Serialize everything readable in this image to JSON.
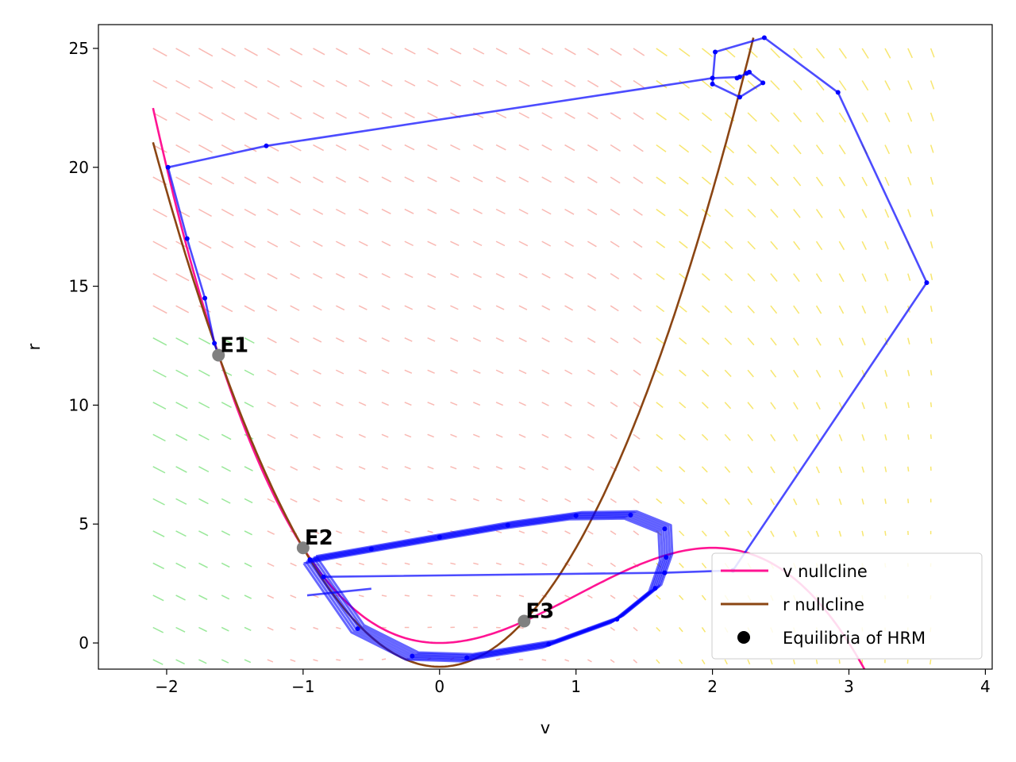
{
  "chart_data": {
    "type": "line",
    "xlabel": "v",
    "ylabel": "r",
    "xlim": [
      -2.5,
      4.05
    ],
    "ylim": [
      -1.1,
      26
    ],
    "xticks": [
      -2,
      -1,
      0,
      1,
      2,
      3,
      4
    ],
    "yticks": [
      0,
      5,
      10,
      15,
      20,
      25
    ],
    "xtick_labels": [
      "−2",
      "−1",
      "0",
      "1",
      "2",
      "3",
      "4"
    ],
    "ytick_labels": [
      "0",
      "5",
      "10",
      "15",
      "20",
      "25"
    ],
    "grid": false,
    "legend": {
      "placement": "lower-right",
      "entries": [
        {
          "label": "v nullcline",
          "color": "#ff1493",
          "kind": "line"
        },
        {
          "label": "r nullcline",
          "color": "#8b4513",
          "kind": "line"
        },
        {
          "label": "Equilibria of HRM",
          "color": "#000000",
          "kind": "marker"
        }
      ]
    },
    "series": [
      {
        "name": "v nullcline",
        "color": "#ff1493",
        "formula": "r = -v^3 + 3v^2 + 0",
        "x_range": [
          -2.1,
          3.4
        ]
      },
      {
        "name": "r nullcline",
        "color": "#8b4513",
        "formula": "r = 5v^2 - 1",
        "x_range": [
          -2.1,
          2.3
        ]
      }
    ],
    "equilibria": [
      {
        "label": "E1",
        "v": -1.62,
        "r": 12.1
      },
      {
        "label": "E2",
        "v": -1.0,
        "r": 4.0
      },
      {
        "label": "E3",
        "v": 0.62,
        "r": 0.92
      }
    ],
    "trajectory": {
      "color": "#0000ff",
      "lead_in": [
        [
          -0.97,
          2.0
        ],
        [
          -0.5,
          2.28
        ]
      ],
      "limit_cycle": [
        [
          -0.95,
          3.5
        ],
        [
          -0.5,
          3.95
        ],
        [
          0.0,
          4.45
        ],
        [
          0.5,
          4.95
        ],
        [
          1.0,
          5.35
        ],
        [
          1.4,
          5.38
        ],
        [
          1.65,
          4.8
        ],
        [
          1.66,
          3.6
        ],
        [
          1.58,
          2.3
        ],
        [
          1.3,
          1.0
        ],
        [
          0.8,
          -0.05
        ],
        [
          0.2,
          -0.62
        ],
        [
          -0.2,
          -0.55
        ],
        [
          -0.6,
          0.6
        ],
        [
          -0.95,
          3.5
        ]
      ],
      "transient": [
        [
          -0.85,
          2.78
        ],
        [
          1.65,
          2.95
        ],
        [
          2.15,
          3.05
        ],
        [
          3.57,
          15.15
        ],
        [
          2.92,
          23.15
        ],
        [
          2.38,
          25.45
        ],
        [
          2.02,
          24.85
        ],
        [
          2.0,
          23.5
        ],
        [
          2.2,
          22.95
        ],
        [
          2.37,
          23.55
        ],
        [
          2.27,
          24.0
        ],
        [
          2.18,
          23.75
        ],
        [
          2.25,
          23.95
        ],
        [
          2.2,
          23.8
        ],
        [
          2.0,
          23.75
        ],
        [
          -1.27,
          20.9
        ],
        [
          -1.99,
          20.0
        ],
        [
          -1.85,
          17.0
        ],
        [
          -1.72,
          14.5
        ],
        [
          -1.65,
          12.6
        ],
        [
          -1.62,
          12.1
        ]
      ]
    },
    "vector_field": {
      "x_range": [
        -2.1,
        3.6
      ],
      "y_range": [
        -0.7,
        25.0
      ],
      "nx": 35,
      "ny": 20,
      "colors": [
        "#f7a7a0",
        "#f5e04a",
        "#7fe27f",
        "#d9b3ff"
      ]
    }
  }
}
